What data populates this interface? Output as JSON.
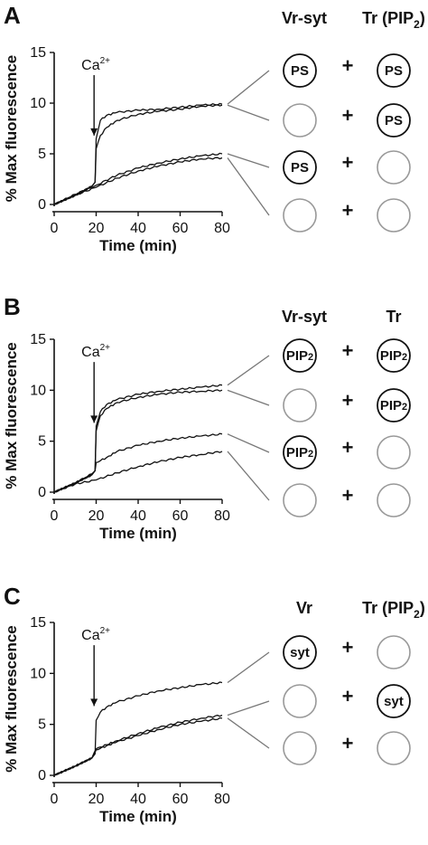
{
  "chart_data": [
    {
      "panel": "A",
      "type": "line",
      "xlabel": "Time (min)",
      "ylabel": "% Max fluorescence",
      "xlim": [
        0,
        80
      ],
      "ylim": [
        0,
        15
      ],
      "xticks": [
        "0",
        "20",
        "40",
        "60",
        "80"
      ],
      "yticks": [
        "0",
        "5",
        "10",
        "15"
      ],
      "annotation": {
        "text": "Ca",
        "superscript": "2+",
        "x": 19
      },
      "header": {
        "left": "Vr-syt",
        "right": "Tr (PIP",
        "right_sub": "2",
        "right_close": ")"
      },
      "series": [
        {
          "x": [
            0,
            10,
            18,
            19.5,
            20,
            22,
            25,
            30,
            40,
            50,
            60,
            70,
            80
          ],
          "values": [
            0,
            0.9,
            1.8,
            2.2,
            6.5,
            8.3,
            8.8,
            9.1,
            9.3,
            9.4,
            9.6,
            9.8,
            9.9
          ]
        },
        {
          "x": [
            0,
            10,
            18,
            19.5,
            20,
            22,
            25,
            30,
            40,
            50,
            60,
            70,
            80
          ],
          "values": [
            0,
            0.9,
            1.8,
            2.2,
            5.5,
            6.8,
            7.6,
            8.3,
            8.9,
            9.2,
            9.4,
            9.7,
            9.8
          ]
        },
        {
          "x": [
            0,
            10,
            20,
            30,
            40,
            50,
            60,
            70,
            80
          ],
          "values": [
            0,
            1.0,
            1.9,
            2.9,
            3.6,
            4.1,
            4.5,
            4.8,
            5.0
          ]
        },
        {
          "x": [
            0,
            10,
            20,
            30,
            40,
            50,
            60,
            70,
            80
          ],
          "values": [
            0,
            0.9,
            1.7,
            2.6,
            3.3,
            3.8,
            4.2,
            4.5,
            4.6
          ]
        }
      ],
      "vesicle_rows": [
        {
          "left": "PS",
          "right": "PS"
        },
        {
          "left": "",
          "right": "PS"
        },
        {
          "left": "PS",
          "right": ""
        },
        {
          "left": "",
          "right": ""
        }
      ],
      "plus": "+"
    },
    {
      "panel": "B",
      "type": "line",
      "xlabel": "Time (min)",
      "ylabel": "% Max fluorescence",
      "xlim": [
        0,
        80
      ],
      "ylim": [
        0,
        15
      ],
      "xticks": [
        "0",
        "20",
        "40",
        "60",
        "80"
      ],
      "yticks": [
        "0",
        "5",
        "10",
        "15"
      ],
      "annotation": {
        "text": "Ca",
        "superscript": "2+",
        "x": 19
      },
      "header": {
        "left": "Vr-syt",
        "right": "Tr",
        "right_sub": "",
        "right_close": ""
      },
      "series": [
        {
          "x": [
            0,
            10,
            18,
            19.5,
            20,
            22,
            25,
            30,
            40,
            50,
            60,
            70,
            80
          ],
          "values": [
            0,
            0.9,
            1.7,
            2.1,
            6.5,
            7.9,
            8.6,
            9.1,
            9.6,
            9.9,
            10.1,
            10.3,
            10.5
          ]
        },
        {
          "x": [
            0,
            10,
            18,
            19.5,
            20,
            22,
            25,
            30,
            40,
            50,
            60,
            70,
            80
          ],
          "values": [
            0,
            0.9,
            1.7,
            2.1,
            6.0,
            7.5,
            8.2,
            8.8,
            9.3,
            9.6,
            9.8,
            9.9,
            10.0
          ]
        },
        {
          "x": [
            0,
            10,
            18,
            19.5,
            20,
            25,
            30,
            40,
            50,
            60,
            70,
            80
          ],
          "values": [
            0,
            0.9,
            1.8,
            2.1,
            2.9,
            3.4,
            4.0,
            4.6,
            5.0,
            5.3,
            5.5,
            5.7
          ]
        },
        {
          "x": [
            0,
            10,
            20,
            30,
            40,
            50,
            60,
            70,
            80
          ],
          "values": [
            0,
            0.8,
            1.2,
            1.9,
            2.5,
            3.0,
            3.4,
            3.7,
            4.0
          ]
        }
      ],
      "vesicle_rows": [
        {
          "left": "PIP2",
          "right": "PIP2"
        },
        {
          "left": "",
          "right": "PIP2"
        },
        {
          "left": "PIP2",
          "right": ""
        },
        {
          "left": "",
          "right": ""
        }
      ],
      "plus": "+"
    },
    {
      "panel": "C",
      "type": "line",
      "xlabel": "Time (min)",
      "ylabel": "% Max fluorescence",
      "xlim": [
        0,
        80
      ],
      "ylim": [
        0,
        15
      ],
      "xticks": [
        "0",
        "20",
        "40",
        "60",
        "80"
      ],
      "yticks": [
        "0",
        "5",
        "10",
        "15"
      ],
      "annotation": {
        "text": "Ca",
        "superscript": "2+",
        "x": 19
      },
      "header": {
        "left": "Vr",
        "right": "Tr (PIP",
        "right_sub": "2",
        "right_close": ")"
      },
      "series": [
        {
          "x": [
            0,
            10,
            18,
            19.5,
            20,
            22,
            25,
            30,
            40,
            50,
            60,
            70,
            80
          ],
          "values": [
            0,
            0.9,
            1.7,
            2.1,
            5.4,
            6.2,
            6.7,
            7.2,
            7.8,
            8.3,
            8.6,
            8.9,
            9.1
          ]
        },
        {
          "x": [
            0,
            10,
            18,
            20,
            25,
            30,
            40,
            50,
            60,
            70,
            80
          ],
          "values": [
            0,
            0.9,
            1.7,
            2.6,
            3.0,
            3.4,
            4.1,
            4.7,
            5.2,
            5.6,
            5.9
          ]
        },
        {
          "x": [
            0,
            10,
            18,
            20,
            25,
            30,
            40,
            50,
            60,
            70,
            80
          ],
          "values": [
            0,
            0.9,
            1.7,
            2.5,
            2.9,
            3.3,
            3.9,
            4.5,
            5.0,
            5.3,
            5.6
          ]
        }
      ],
      "vesicle_rows": [
        {
          "left": "syt",
          "right": ""
        },
        {
          "left": "",
          "right": "syt"
        },
        {
          "left": "",
          "right": ""
        }
      ],
      "plus": "+"
    }
  ]
}
